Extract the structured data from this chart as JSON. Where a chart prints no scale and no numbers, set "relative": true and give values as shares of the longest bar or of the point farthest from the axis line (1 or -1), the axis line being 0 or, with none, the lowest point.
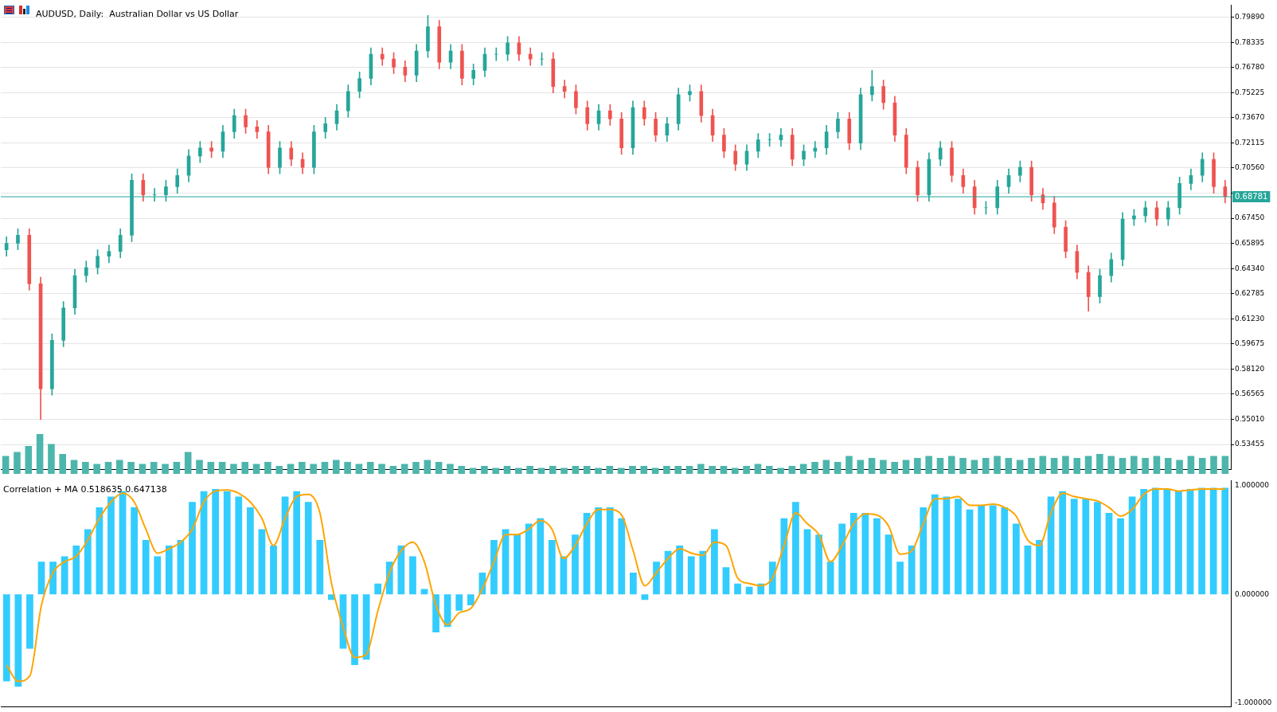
{
  "chart_data": [
    {
      "type": "candlestick",
      "title": "AUDUSD, Daily:  Australian Dollar vs US Dollar",
      "categories": [
        null,
        null,
        null,
        null,
        null,
        null,
        null,
        null,
        null,
        null,
        null,
        null,
        null,
        null,
        null,
        null,
        null,
        null,
        null,
        null,
        null,
        null,
        null,
        null,
        null,
        null,
        null,
        null,
        null,
        null,
        null,
        null,
        null,
        null,
        null,
        null,
        null,
        null,
        null,
        null,
        null,
        null,
        null,
        null,
        null,
        null,
        null,
        null,
        null,
        null,
        null,
        null,
        null,
        null,
        null,
        null,
        null,
        null,
        null,
        null,
        null,
        null,
        null,
        null,
        null,
        null,
        null,
        null,
        null,
        null,
        null,
        null,
        null,
        null,
        null,
        null,
        null,
        null,
        null,
        null,
        null,
        null,
        null,
        null,
        null,
        null,
        null,
        null,
        null,
        null,
        null,
        null,
        null,
        null,
        null,
        null,
        null,
        null,
        null,
        null,
        null,
        null,
        null,
        null,
        null,
        null,
        null,
        null
      ],
      "ohlc": [
        [
          0.655,
          0.663,
          0.651,
          0.659
        ],
        [
          0.659,
          0.668,
          0.655,
          0.664
        ],
        [
          0.664,
          0.668,
          0.63,
          0.634
        ],
        [
          0.634,
          0.638,
          0.55,
          0.569
        ],
        [
          0.569,
          0.603,
          0.565,
          0.599
        ],
        [
          0.599,
          0.623,
          0.595,
          0.619
        ],
        [
          0.619,
          0.643,
          0.615,
          0.639
        ],
        [
          0.639,
          0.648,
          0.635,
          0.644
        ],
        [
          0.644,
          0.655,
          0.64,
          0.651
        ],
        [
          0.651,
          0.658,
          0.647,
          0.654
        ],
        [
          0.654,
          0.668,
          0.65,
          0.664
        ],
        [
          0.664,
          0.702,
          0.66,
          0.698
        ],
        [
          0.698,
          0.702,
          0.685,
          0.689
        ],
        [
          0.689,
          0.693,
          0.685,
          0.689
        ],
        [
          0.689,
          0.698,
          0.685,
          0.694
        ],
        [
          0.694,
          0.705,
          0.69,
          0.701
        ],
        [
          0.701,
          0.717,
          0.697,
          0.713
        ],
        [
          0.713,
          0.722,
          0.709,
          0.718
        ],
        [
          0.718,
          0.722,
          0.712,
          0.716
        ],
        [
          0.716,
          0.732,
          0.712,
          0.728
        ],
        [
          0.728,
          0.742,
          0.724,
          0.738
        ],
        [
          0.738,
          0.742,
          0.727,
          0.731
        ],
        [
          0.731,
          0.735,
          0.724,
          0.728
        ],
        [
          0.728,
          0.732,
          0.702,
          0.706
        ],
        [
          0.706,
          0.722,
          0.702,
          0.718
        ],
        [
          0.718,
          0.722,
          0.707,
          0.711
        ],
        [
          0.711,
          0.715,
          0.702,
          0.706
        ],
        [
          0.706,
          0.732,
          0.702,
          0.728
        ],
        [
          0.728,
          0.737,
          0.724,
          0.733
        ],
        [
          0.733,
          0.745,
          0.729,
          0.741
        ],
        [
          0.741,
          0.757,
          0.737,
          0.753
        ],
        [
          0.753,
          0.765,
          0.749,
          0.761
        ],
        [
          0.761,
          0.78,
          0.757,
          0.776
        ],
        [
          0.776,
          0.78,
          0.769,
          0.773
        ],
        [
          0.773,
          0.777,
          0.764,
          0.768
        ],
        [
          0.768,
          0.772,
          0.759,
          0.763
        ],
        [
          0.763,
          0.782,
          0.759,
          0.778
        ],
        [
          0.778,
          0.8,
          0.774,
          0.793
        ],
        [
          0.793,
          0.797,
          0.767,
          0.771
        ],
        [
          0.771,
          0.782,
          0.767,
          0.778
        ],
        [
          0.778,
          0.782,
          0.757,
          0.761
        ],
        [
          0.761,
          0.77,
          0.757,
          0.766
        ],
        [
          0.766,
          0.78,
          0.762,
          0.776
        ],
        [
          0.776,
          0.78,
          0.772,
          0.776
        ],
        [
          0.776,
          0.787,
          0.772,
          0.783
        ],
        [
          0.783,
          0.787,
          0.772,
          0.776
        ],
        [
          0.776,
          0.78,
          0.769,
          0.773
        ],
        [
          0.773,
          0.777,
          0.769,
          0.773
        ],
        [
          0.773,
          0.777,
          0.752,
          0.756
        ],
        [
          0.756,
          0.76,
          0.749,
          0.753
        ],
        [
          0.753,
          0.757,
          0.739,
          0.743
        ],
        [
          0.743,
          0.747,
          0.729,
          0.733
        ],
        [
          0.733,
          0.745,
          0.729,
          0.741
        ],
        [
          0.741,
          0.745,
          0.732,
          0.736
        ],
        [
          0.736,
          0.74,
          0.714,
          0.718
        ],
        [
          0.718,
          0.747,
          0.714,
          0.743
        ],
        [
          0.743,
          0.747,
          0.732,
          0.736
        ],
        [
          0.736,
          0.74,
          0.722,
          0.726
        ],
        [
          0.726,
          0.737,
          0.722,
          0.733
        ],
        [
          0.733,
          0.755,
          0.729,
          0.751
        ],
        [
          0.751,
          0.757,
          0.747,
          0.753
        ],
        [
          0.753,
          0.757,
          0.734,
          0.738
        ],
        [
          0.738,
          0.742,
          0.722,
          0.726
        ],
        [
          0.726,
          0.73,
          0.712,
          0.716
        ],
        [
          0.716,
          0.72,
          0.704,
          0.708
        ],
        [
          0.708,
          0.72,
          0.704,
          0.716
        ],
        [
          0.716,
          0.727,
          0.712,
          0.723
        ],
        [
          0.723,
          0.727,
          0.719,
          0.723
        ],
        [
          0.723,
          0.73,
          0.719,
          0.726
        ],
        [
          0.726,
          0.73,
          0.707,
          0.711
        ],
        [
          0.711,
          0.72,
          0.707,
          0.716
        ],
        [
          0.716,
          0.722,
          0.712,
          0.718
        ],
        [
          0.718,
          0.732,
          0.714,
          0.728
        ],
        [
          0.728,
          0.74,
          0.724,
          0.736
        ],
        [
          0.736,
          0.74,
          0.717,
          0.721
        ],
        [
          0.721,
          0.755,
          0.717,
          0.751
        ],
        [
          0.751,
          0.766,
          0.747,
          0.756
        ],
        [
          0.756,
          0.76,
          0.742,
          0.746
        ],
        [
          0.746,
          0.75,
          0.722,
          0.726
        ],
        [
          0.726,
          0.73,
          0.702,
          0.706
        ],
        [
          0.706,
          0.71,
          0.685,
          0.689
        ],
        [
          0.689,
          0.715,
          0.685,
          0.711
        ],
        [
          0.711,
          0.722,
          0.707,
          0.718
        ],
        [
          0.718,
          0.722,
          0.697,
          0.701
        ],
        [
          0.701,
          0.705,
          0.69,
          0.694
        ],
        [
          0.694,
          0.698,
          0.677,
          0.681
        ],
        [
          0.681,
          0.685,
          0.677,
          0.681
        ],
        [
          0.681,
          0.698,
          0.677,
          0.694
        ],
        [
          0.694,
          0.705,
          0.69,
          0.701
        ],
        [
          0.701,
          0.71,
          0.697,
          0.706
        ],
        [
          0.706,
          0.71,
          0.685,
          0.689
        ],
        [
          0.689,
          0.693,
          0.68,
          0.684
        ],
        [
          0.684,
          0.688,
          0.665,
          0.669
        ],
        [
          0.669,
          0.673,
          0.65,
          0.654
        ],
        [
          0.654,
          0.658,
          0.637,
          0.641
        ],
        [
          0.641,
          0.645,
          0.617,
          0.626
        ],
        [
          0.626,
          0.643,
          0.622,
          0.639
        ],
        [
          0.639,
          0.653,
          0.635,
          0.649
        ],
        [
          0.649,
          0.678,
          0.645,
          0.674
        ],
        [
          0.674,
          0.68,
          0.67,
          0.676
        ],
        [
          0.676,
          0.685,
          0.672,
          0.681
        ],
        [
          0.681,
          0.685,
          0.67,
          0.674
        ],
        [
          0.674,
          0.685,
          0.67,
          0.681
        ],
        [
          0.681,
          0.7,
          0.677,
          0.696
        ],
        [
          0.696,
          0.705,
          0.692,
          0.701
        ],
        [
          0.701,
          0.715,
          0.697,
          0.711
        ],
        [
          0.711,
          0.715,
          0.69,
          0.694
        ],
        [
          0.694,
          0.698,
          0.684,
          0.688
        ]
      ],
      "colors": [
        "#26a69a",
        "#26a69a",
        "#ef5350",
        "#ef5350",
        "#26a69a",
        "#26a69a",
        "#26a69a",
        "#26a69a",
        "#26a69a",
        "#26a69a",
        "#26a69a",
        "#26a69a",
        "#ef5350",
        "#26a69a",
        "#26a69a",
        "#26a69a",
        "#26a69a",
        "#26a69a",
        "#ef5350",
        "#26a69a",
        "#26a69a",
        "#ef5350",
        "#ef5350",
        "#ef5350",
        "#26a69a",
        "#ef5350",
        "#ef5350",
        "#26a69a",
        "#26a69a",
        "#26a69a",
        "#26a69a",
        "#26a69a",
        "#26a69a",
        "#ef5350",
        "#ef5350",
        "#ef5350",
        "#26a69a",
        "#26a69a",
        "#ef5350",
        "#26a69a",
        "#ef5350",
        "#26a69a",
        "#26a69a",
        "#26a69a",
        "#26a69a",
        "#ef5350",
        "#ef5350",
        "#26a69a",
        "#ef5350",
        "#ef5350",
        "#ef5350",
        "#ef5350",
        "#26a69a",
        "#ef5350",
        "#ef5350",
        "#26a69a",
        "#ef5350",
        "#ef5350",
        "#26a69a",
        "#26a69a",
        "#26a69a",
        "#ef5350",
        "#ef5350",
        "#ef5350",
        "#ef5350",
        "#26a69a",
        "#26a69a",
        "#26a69a",
        "#26a69a",
        "#ef5350",
        "#26a69a",
        "#26a69a",
        "#26a69a",
        "#26a69a",
        "#ef5350",
        "#26a69a",
        "#26a69a",
        "#ef5350",
        "#ef5350",
        "#ef5350",
        "#ef5350",
        "#26a69a",
        "#26a69a",
        "#ef5350",
        "#ef5350",
        "#ef5350",
        "#26a69a",
        "#26a69a",
        "#26a69a",
        "#26a69a",
        "#ef5350",
        "#ef5350",
        "#ef5350",
        "#ef5350",
        "#ef5350",
        "#ef5350",
        "#26a69a",
        "#26a69a",
        "#26a69a",
        "#26a69a",
        "#26a69a",
        "#ef5350",
        "#26a69a",
        "#26a69a",
        "#26a69a",
        "#26a69a",
        "#ef5350",
        "#ef5350"
      ],
      "ylim": [
        0.519,
        0.8064
      ],
      "yticks": [
        {
          "value": 0.53455,
          "label": "0.53455"
        },
        {
          "value": 0.5501,
          "label": "0.55010"
        },
        {
          "value": 0.56565,
          "label": "0.56565"
        },
        {
          "value": 0.5812,
          "label": "0.58120"
        },
        {
          "value": 0.59675,
          "label": "0.59675"
        },
        {
          "value": 0.6123,
          "label": "0.61230"
        },
        {
          "value": 0.62785,
          "label": "0.62785"
        },
        {
          "value": 0.6434,
          "label": "0.64340"
        },
        {
          "value": 0.65895,
          "label": "0.65895"
        },
        {
          "value": 0.6745,
          "label": "0.67450"
        },
        {
          "value": 0.69005,
          "label": null
        },
        {
          "value": 0.7056,
          "label": "0.70560"
        },
        {
          "value": 0.72115,
          "label": "0.72115"
        },
        {
          "value": 0.7367,
          "label": "0.73670"
        },
        {
          "value": 0.75225,
          "label": "0.75225"
        },
        {
          "value": 0.7678,
          "label": "0.76780"
        },
        {
          "value": 0.78335,
          "label": "0.78335"
        },
        {
          "value": 0.7989,
          "label": "0.79890"
        }
      ],
      "ref_lines": [
        {
          "axis": "y",
          "value": 0.68781,
          "label": "0.68781",
          "color": "#26a69a"
        }
      ],
      "grid": "y",
      "legend": false,
      "tick_labels": "y"
    },
    {
      "type": "bar",
      "relative": true,
      "color": "#4db6ac",
      "legend": false,
      "tick_labels": false,
      "categories": [
        null,
        null,
        null,
        null,
        null,
        null,
        null,
        null,
        null,
        null,
        null,
        null,
        null,
        null,
        null,
        null,
        null,
        null,
        null,
        null,
        null,
        null,
        null,
        null,
        null,
        null,
        null,
        null,
        null,
        null,
        null,
        null,
        null,
        null,
        null,
        null,
        null,
        null,
        null,
        null,
        null,
        null,
        null,
        null,
        null,
        null,
        null,
        null,
        null,
        null,
        null,
        null,
        null,
        null,
        null,
        null,
        null,
        null,
        null,
        null,
        null,
        null,
        null,
        null,
        null,
        null,
        null,
        null,
        null,
        null,
        null,
        null,
        null,
        null,
        null,
        null,
        null,
        null,
        null,
        null,
        null,
        null,
        null,
        null,
        null,
        null,
        null,
        null,
        null,
        null,
        null,
        null,
        null,
        null,
        null,
        null,
        null,
        null,
        null,
        null,
        null,
        null,
        null,
        null,
        null,
        null,
        null,
        null
      ],
      "values": [
        0.45,
        0.55,
        0.7,
        1,
        0.75,
        0.5,
        0.35,
        0.3,
        0.25,
        0.3,
        0.35,
        0.3,
        0.25,
        0.3,
        0.25,
        0.3,
        0.55,
        0.35,
        0.3,
        0.3,
        0.25,
        0.3,
        0.25,
        0.3,
        0.2,
        0.25,
        0.3,
        0.25,
        0.3,
        0.35,
        0.3,
        0.25,
        0.3,
        0.25,
        0.2,
        0.25,
        0.3,
        0.35,
        0.3,
        0.25,
        0.2,
        0.15,
        0.2,
        0.15,
        0.2,
        0.15,
        0.2,
        0.15,
        0.2,
        0.15,
        0.2,
        0.2,
        0.15,
        0.2,
        0.15,
        0.2,
        0.2,
        0.15,
        0.2,
        0.2,
        0.2,
        0.25,
        0.2,
        0.2,
        0.15,
        0.2,
        0.25,
        0.2,
        0.15,
        0.2,
        0.25,
        0.3,
        0.35,
        0.3,
        0.45,
        0.35,
        0.4,
        0.35,
        0.3,
        0.35,
        0.4,
        0.45,
        0.4,
        0.45,
        0.4,
        0.35,
        0.4,
        0.45,
        0.4,
        0.35,
        0.4,
        0.45,
        0.4,
        0.45,
        0.4,
        0.45,
        0.5,
        0.45,
        0.4,
        0.45,
        0.4,
        0.45,
        0.4,
        0.35,
        0.45,
        0.4,
        0.45,
        0.45
      ]
    },
    {
      "type": "bar",
      "title": "Correlation + MA 0.518635 0.647138",
      "categories": [
        null,
        null,
        null,
        null,
        null,
        null,
        null,
        null,
        null,
        null,
        null,
        null,
        null,
        null,
        null,
        null,
        null,
        null,
        null,
        null,
        null,
        null,
        null,
        null,
        null,
        null,
        null,
        null,
        null,
        null,
        null,
        null,
        null,
        null,
        null,
        null,
        null,
        null,
        null,
        null,
        null,
        null,
        null,
        null,
        null,
        null,
        null,
        null,
        null,
        null,
        null,
        null,
        null,
        null,
        null,
        null,
        null,
        null,
        null,
        null,
        null,
        null,
        null,
        null,
        null,
        null,
        null,
        null,
        null,
        null,
        null,
        null,
        null,
        null,
        null,
        null,
        null,
        null,
        null,
        null,
        null,
        null,
        null,
        null,
        null,
        null,
        null,
        null,
        null,
        null,
        null,
        null,
        null,
        null,
        null,
        null,
        null,
        null,
        null,
        null,
        null,
        null,
        null,
        null,
        null,
        null
      ],
      "series": [
        {
          "type": "bar",
          "color": "#33ccff",
          "values": [
            -0.8,
            -0.85,
            -0.5,
            0.3,
            0.3,
            0.35,
            0.45,
            0.6,
            0.8,
            0.9,
            0.95,
            0.8,
            0.5,
            0.35,
            0.45,
            0.5,
            0.85,
            0.95,
            0.97,
            0.95,
            0.9,
            0.8,
            0.6,
            0.45,
            0.9,
            0.95,
            0.85,
            0.5,
            -0.05,
            -0.5,
            -0.65,
            -0.6,
            0.1,
            0.3,
            0.45,
            0.35,
            0.05,
            -0.35,
            -0.3,
            -0.15,
            -0.1,
            0.2,
            0.5,
            0.6,
            0.55,
            0.65,
            0.7,
            0.5,
            0.35,
            0.55,
            0.75,
            0.8,
            0.8,
            0.7,
            0.2,
            -0.05,
            0.3,
            0.4,
            0.45,
            0.35,
            0.4,
            0.6,
            0.25,
            0.1,
            0.07,
            0.1,
            0.3,
            0.7,
            0.85,
            0.6,
            0.55,
            0.3,
            0.65,
            0.75,
            0.75,
            0.7,
            0.55,
            0.3,
            0.45,
            0.8,
            0.92,
            0.9,
            0.88,
            0.78,
            0.82,
            0.82,
            0.8,
            0.65,
            0.45,
            0.5,
            0.9,
            0.95,
            0.88,
            0.88,
            0.85,
            0.75,
            0.7,
            0.9,
            0.97,
            0.98,
            0.97,
            0.95,
            0.97,
            0.98,
            0.98,
            0.98
          ]
        },
        {
          "type": "line",
          "color": "#ffa500",
          "values": [
            -0.65,
            -0.8,
            -0.75,
            -0.1,
            0.2,
            0.3,
            0.35,
            0.5,
            0.7,
            0.85,
            0.93,
            0.85,
            0.6,
            0.38,
            0.42,
            0.48,
            0.6,
            0.85,
            0.95,
            0.96,
            0.93,
            0.85,
            0.7,
            0.45,
            0.7,
            0.9,
            0.92,
            0.75,
            0.1,
            -0.3,
            -0.58,
            -0.55,
            -0.15,
            0.2,
            0.4,
            0.48,
            0.3,
            -0.1,
            -0.28,
            -0.17,
            -0.13,
            0.05,
            0.3,
            0.55,
            0.55,
            0.6,
            0.68,
            0.6,
            0.33,
            0.45,
            0.65,
            0.78,
            0.78,
            0.73,
            0.4,
            0.08,
            0.2,
            0.33,
            0.42,
            0.38,
            0.36,
            0.48,
            0.45,
            0.15,
            0.1,
            0.08,
            0.15,
            0.45,
            0.75,
            0.65,
            0.55,
            0.3,
            0.45,
            0.65,
            0.74,
            0.73,
            0.63,
            0.37,
            0.4,
            0.65,
            0.88,
            0.88,
            0.9,
            0.82,
            0.82,
            0.83,
            0.8,
            0.72,
            0.5,
            0.45,
            0.75,
            0.93,
            0.9,
            0.88,
            0.86,
            0.8,
            0.72,
            0.78,
            0.92,
            0.97,
            0.97,
            0.95,
            0.96,
            0.97,
            0.97,
            0.97
          ]
        }
      ],
      "ylim": [
        -1.035,
        1.047
      ],
      "yticks": [
        {
          "value": -1,
          "label": "-1.000000"
        },
        {
          "value": 0,
          "label": "0.000000"
        },
        {
          "value": 1,
          "label": "1.000000"
        }
      ],
      "marker": "none",
      "line_style": "solid",
      "legend": false,
      "tick_labels": "y"
    }
  ]
}
